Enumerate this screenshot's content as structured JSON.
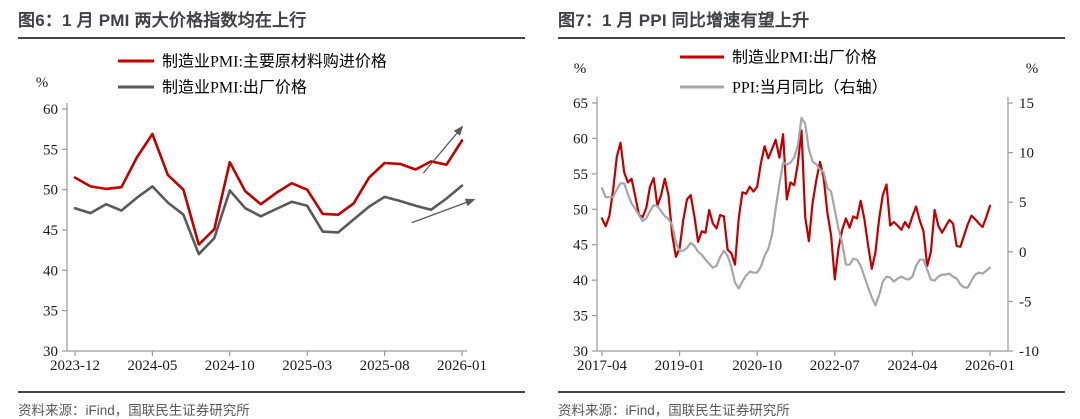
{
  "figures": [
    {
      "title": "图6：1 月 PMI 两大价格指数均在上行",
      "source": "资料来源：iFind，国联民生证券研究所"
    },
    {
      "title": "图7：1 月 PPI 同比增速有望上升",
      "source": "资料来源：iFind，国联民生证券研究所"
    }
  ],
  "colors": {
    "accent_red": "#c00000",
    "dark_gray": "#595959",
    "light_gray": "#a6a6a6",
    "title_text": "#3e4247",
    "rule": "#43474b",
    "axis": "#9a9a9a",
    "tick_text": "#1a1a1a",
    "source_text": "#595959"
  },
  "chart_data": [
    {
      "type": "line",
      "title": "图6：1 月 PMI 两大价格指数均在上行",
      "axis_unit_left": "%",
      "grid": false,
      "legend_position": "top",
      "x_start": "2023-12",
      "x_end": "2026-01",
      "x_freq": "monthly",
      "x_tick_labels": [
        "2023-12",
        "2024-05",
        "2024-10",
        "2025-03",
        "2025-08",
        "2026-01"
      ],
      "x_tick_indices": [
        0,
        5,
        10,
        15,
        20,
        25
      ],
      "ylim_left": [
        30,
        60
      ],
      "yticks_left": [
        30,
        35,
        40,
        45,
        50,
        55,
        60
      ],
      "series": [
        {
          "name": "制造业PMI:主要原材料购进价格",
          "color": "#c00000",
          "axis": "left",
          "values": [
            51.5,
            50.4,
            50.1,
            50.3,
            54.0,
            56.9,
            51.8,
            50.0,
            43.2,
            45.1,
            53.4,
            49.8,
            48.2,
            49.6,
            50.8,
            50.0,
            47.0,
            46.9,
            48.3,
            51.5,
            53.3,
            53.2,
            52.5,
            53.5,
            53.1,
            56.1
          ]
        },
        {
          "name": "制造业PMI:出厂价格",
          "color": "#595959",
          "axis": "left",
          "values": [
            47.7,
            47.1,
            48.2,
            47.4,
            49.0,
            50.4,
            48.4,
            46.9,
            42.0,
            44.0,
            49.9,
            47.7,
            46.7,
            47.6,
            48.5,
            48.0,
            44.8,
            44.7,
            46.3,
            47.9,
            49.1,
            48.6,
            48.0,
            47.5,
            48.9,
            50.5
          ]
        }
      ],
      "annotations": [
        {
          "type": "arrow",
          "from_frac": [
            0.9,
            0.265
          ],
          "to_frac": [
            1.0,
            0.075
          ],
          "color": "#595959"
        },
        {
          "type": "arrow",
          "from_frac": [
            0.87,
            0.47
          ],
          "to_frac": [
            1.03,
            0.375
          ],
          "color": "#595959"
        }
      ]
    },
    {
      "type": "line",
      "title": "图7：1 月 PPI 同比增速有望上升",
      "axis_unit_left": "%",
      "axis_unit_right": "%",
      "grid": false,
      "legend_position": "top",
      "x_start": "2017-04",
      "x_end": "2026-01",
      "x_freq": "monthly",
      "x_tick_labels": [
        "2017-04",
        "2019-01",
        "2020-10",
        "2022-07",
        "2024-04",
        "2026-01"
      ],
      "x_tick_indices": [
        0,
        21,
        42,
        63,
        84,
        105
      ],
      "ylim_left": [
        30,
        65
      ],
      "yticks_left": [
        30,
        35,
        40,
        45,
        50,
        55,
        60,
        65
      ],
      "ylim_right": [
        -10,
        15
      ],
      "yticks_right": [
        -10,
        -5,
        0,
        5,
        10,
        15
      ],
      "series": [
        {
          "name": "制造业PMI:出厂价格",
          "color": "#c00000",
          "axis": "left",
          "values": [
            48.7,
            47.6,
            49.1,
            52.7,
            57.4,
            59.4,
            55.2,
            53.8,
            54.3,
            51.8,
            49.2,
            48.9,
            50.2,
            53.2,
            54.4,
            50.5,
            52.0,
            54.3,
            52.0,
            46.4,
            43.3,
            44.5,
            48.5,
            51.4,
            52.0,
            49.0,
            45.4,
            46.9,
            46.7,
            49.9,
            48.0,
            47.3,
            49.2,
            49.0,
            44.3,
            43.8,
            42.2,
            48.7,
            52.4,
            52.2,
            53.2,
            52.5,
            53.2,
            56.5,
            58.9,
            57.2,
            58.5,
            59.8,
            57.3,
            60.6,
            51.4,
            53.8,
            53.4,
            56.4,
            61.1,
            48.9,
            45.5,
            50.9,
            54.1,
            56.7,
            54.4,
            49.5,
            46.3,
            40.1,
            44.5,
            47.1,
            48.7,
            47.4,
            49.0,
            48.7,
            51.2,
            48.6,
            44.9,
            41.6,
            43.9,
            48.6,
            52.0,
            53.5,
            47.7,
            48.2,
            47.7,
            47.1,
            48.2,
            47.4,
            49.0,
            50.4,
            48.4,
            46.9,
            42.0,
            44.0,
            49.9,
            47.7,
            46.7,
            47.6,
            48.5,
            48.0,
            44.8,
            44.7,
            46.3,
            47.9,
            49.1,
            48.6,
            48.0,
            47.5,
            48.9,
            50.5
          ]
        },
        {
          "name": "PPI:当月同比（右轴）",
          "color": "#a6a6a6",
          "axis": "right",
          "values": [
            6.4,
            5.5,
            5.5,
            5.5,
            6.3,
            6.9,
            6.9,
            5.8,
            4.9,
            4.3,
            3.7,
            3.1,
            3.4,
            4.1,
            4.7,
            4.6,
            4.1,
            3.6,
            3.3,
            2.7,
            0.9,
            0.1,
            0.1,
            0.4,
            0.9,
            0.6,
            0.0,
            -0.3,
            -0.8,
            -1.2,
            -1.6,
            -1.4,
            -0.5,
            0.1,
            -0.4,
            -1.5,
            -3.1,
            -3.7,
            -3.0,
            -2.4,
            -2.0,
            -2.1,
            -2.1,
            -1.5,
            -0.4,
            0.3,
            1.7,
            4.4,
            6.8,
            9.0,
            8.8,
            9.0,
            9.5,
            10.7,
            13.5,
            12.9,
            10.3,
            9.1,
            8.8,
            8.3,
            8.0,
            6.4,
            6.1,
            4.2,
            2.3,
            0.9,
            -1.3,
            -1.3,
            -0.7,
            -0.8,
            -1.4,
            -2.5,
            -3.6,
            -4.6,
            -5.4,
            -4.4,
            -3.0,
            -2.5,
            -2.6,
            -3.0,
            -2.7,
            -2.5,
            -2.7,
            -2.8,
            -2.5,
            -1.4,
            -0.8,
            -0.8,
            -1.8,
            -2.8,
            -2.9,
            -2.5,
            -2.3,
            -2.3,
            -2.2,
            -2.5,
            -2.7,
            -3.3,
            -3.6,
            -3.6,
            -2.9,
            -2.3,
            -2.1,
            -2.2,
            -1.9,
            -1.6
          ]
        }
      ],
      "annotations": []
    }
  ]
}
